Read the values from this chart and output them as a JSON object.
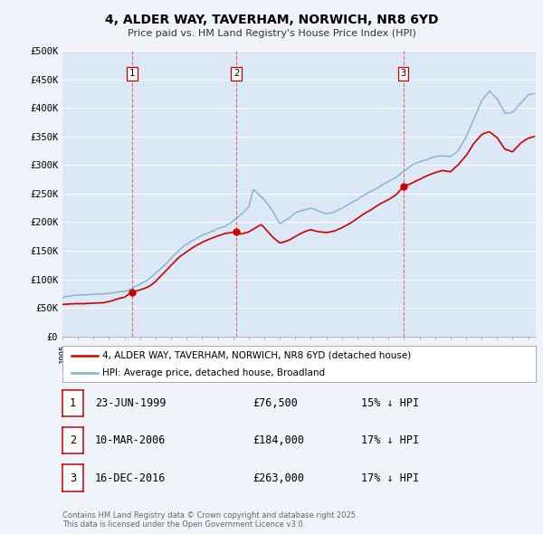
{
  "title": "4, ALDER WAY, TAVERHAM, NORWICH, NR8 6YD",
  "subtitle": "Price paid vs. HM Land Registry's House Price Index (HPI)",
  "background_color": "#f0f4fa",
  "plot_bg_color": "#dce8f5",
  "grid_color": "#c8d8e8",
  "ylim": [
    0,
    500000
  ],
  "yticks": [
    0,
    50000,
    100000,
    150000,
    200000,
    250000,
    300000,
    350000,
    400000,
    450000,
    500000
  ],
  "ytick_labels": [
    "£0",
    "£50K",
    "£100K",
    "£150K",
    "£200K",
    "£250K",
    "£300K",
    "£350K",
    "£400K",
    "£450K",
    "£500K"
  ],
  "hpi_color": "#7fb3d3",
  "price_color": "#cc0000",
  "vline_color": "#e06060",
  "sale_dates": [
    1999.48,
    2006.19,
    2016.96
  ],
  "sale_prices": [
    76500,
    184000,
    263000
  ],
  "sale_labels": [
    "1",
    "2",
    "3"
  ],
  "legend_property": "4, ALDER WAY, TAVERHAM, NORWICH, NR8 6YD (detached house)",
  "legend_hpi": "HPI: Average price, detached house, Broadland",
  "table_entries": [
    {
      "num": "1",
      "date": "23-JUN-1999",
      "price": "£76,500",
      "note": "15% ↓ HPI"
    },
    {
      "num": "2",
      "date": "10-MAR-2006",
      "price": "£184,000",
      "note": "17% ↓ HPI"
    },
    {
      "num": "3",
      "date": "16-DEC-2016",
      "price": "£263,000",
      "note": "17% ↓ HPI"
    }
  ],
  "footnote": "Contains HM Land Registry data © Crown copyright and database right 2025.\nThis data is licensed under the Open Government Licence v3.0.",
  "xmin": 1995.0,
  "xmax": 2025.5,
  "hpi_anchors": [
    [
      1995.0,
      68000
    ],
    [
      1995.5,
      70000
    ],
    [
      1996.0,
      71000
    ],
    [
      1996.5,
      71500
    ],
    [
      1997.0,
      72000
    ],
    [
      1997.5,
      72500
    ],
    [
      1998.0,
      74000
    ],
    [
      1998.5,
      76000
    ],
    [
      1999.0,
      78000
    ],
    [
      1999.5,
      84000
    ],
    [
      2000.0,
      92000
    ],
    [
      2000.5,
      100000
    ],
    [
      2001.0,
      112000
    ],
    [
      2001.5,
      124000
    ],
    [
      2002.0,
      138000
    ],
    [
      2002.5,
      152000
    ],
    [
      2003.0,
      163000
    ],
    [
      2003.5,
      172000
    ],
    [
      2004.0,
      180000
    ],
    [
      2004.5,
      186000
    ],
    [
      2005.0,
      192000
    ],
    [
      2005.5,
      196000
    ],
    [
      2006.0,
      205000
    ],
    [
      2006.5,
      215000
    ],
    [
      2007.0,
      228000
    ],
    [
      2007.3,
      258000
    ],
    [
      2007.7,
      248000
    ],
    [
      2008.0,
      240000
    ],
    [
      2008.5,
      222000
    ],
    [
      2009.0,
      198000
    ],
    [
      2009.5,
      207000
    ],
    [
      2010.0,
      218000
    ],
    [
      2010.5,
      222000
    ],
    [
      2011.0,
      225000
    ],
    [
      2011.5,
      220000
    ],
    [
      2012.0,
      216000
    ],
    [
      2012.5,
      220000
    ],
    [
      2013.0,
      226000
    ],
    [
      2013.5,
      234000
    ],
    [
      2014.0,
      242000
    ],
    [
      2014.5,
      252000
    ],
    [
      2015.0,
      260000
    ],
    [
      2015.5,
      268000
    ],
    [
      2016.0,
      276000
    ],
    [
      2016.5,
      284000
    ],
    [
      2017.0,
      294000
    ],
    [
      2017.5,
      304000
    ],
    [
      2018.0,
      310000
    ],
    [
      2018.5,
      314000
    ],
    [
      2019.0,
      318000
    ],
    [
      2019.5,
      320000
    ],
    [
      2020.0,
      317000
    ],
    [
      2020.5,
      328000
    ],
    [
      2021.0,
      352000
    ],
    [
      2021.5,
      382000
    ],
    [
      2022.0,
      415000
    ],
    [
      2022.5,
      432000
    ],
    [
      2023.0,
      418000
    ],
    [
      2023.5,
      392000
    ],
    [
      2024.0,
      393000
    ],
    [
      2024.5,
      408000
    ],
    [
      2025.0,
      422000
    ],
    [
      2025.4,
      425000
    ]
  ],
  "price_anchors": [
    [
      1995.0,
      56000
    ],
    [
      1995.5,
      57000
    ],
    [
      1996.0,
      57500
    ],
    [
      1996.5,
      58000
    ],
    [
      1997.0,
      58500
    ],
    [
      1997.5,
      59000
    ],
    [
      1998.0,
      61000
    ],
    [
      1998.5,
      65000
    ],
    [
      1999.0,
      68000
    ],
    [
      1999.48,
      76500
    ],
    [
      2000.0,
      80000
    ],
    [
      2000.5,
      86000
    ],
    [
      2001.0,
      96000
    ],
    [
      2001.5,
      110000
    ],
    [
      2002.0,
      124000
    ],
    [
      2002.5,
      138000
    ],
    [
      2003.0,
      148000
    ],
    [
      2003.5,
      157000
    ],
    [
      2004.0,
      164000
    ],
    [
      2004.5,
      170000
    ],
    [
      2005.0,
      175000
    ],
    [
      2005.5,
      179000
    ],
    [
      2006.0,
      182000
    ],
    [
      2006.19,
      184000
    ],
    [
      2006.5,
      178000
    ],
    [
      2007.0,
      182000
    ],
    [
      2007.5,
      190000
    ],
    [
      2007.8,
      195000
    ],
    [
      2008.0,
      190000
    ],
    [
      2008.5,
      174000
    ],
    [
      2009.0,
      163000
    ],
    [
      2009.5,
      167000
    ],
    [
      2010.0,
      175000
    ],
    [
      2010.5,
      182000
    ],
    [
      2011.0,
      187000
    ],
    [
      2011.5,
      184000
    ],
    [
      2012.0,
      182000
    ],
    [
      2012.5,
      185000
    ],
    [
      2013.0,
      191000
    ],
    [
      2013.5,
      198000
    ],
    [
      2014.0,
      207000
    ],
    [
      2014.5,
      217000
    ],
    [
      2015.0,
      225000
    ],
    [
      2015.5,
      234000
    ],
    [
      2016.0,
      241000
    ],
    [
      2016.5,
      250000
    ],
    [
      2016.96,
      263000
    ],
    [
      2017.5,
      268000
    ],
    [
      2018.0,
      275000
    ],
    [
      2018.5,
      281000
    ],
    [
      2019.0,
      286000
    ],
    [
      2019.5,
      290000
    ],
    [
      2020.0,
      287000
    ],
    [
      2020.5,
      300000
    ],
    [
      2021.0,
      316000
    ],
    [
      2021.5,
      338000
    ],
    [
      2022.0,
      353000
    ],
    [
      2022.5,
      358000
    ],
    [
      2023.0,
      348000
    ],
    [
      2023.5,
      328000
    ],
    [
      2024.0,
      323000
    ],
    [
      2024.5,
      338000
    ],
    [
      2025.0,
      347000
    ],
    [
      2025.4,
      350000
    ]
  ]
}
